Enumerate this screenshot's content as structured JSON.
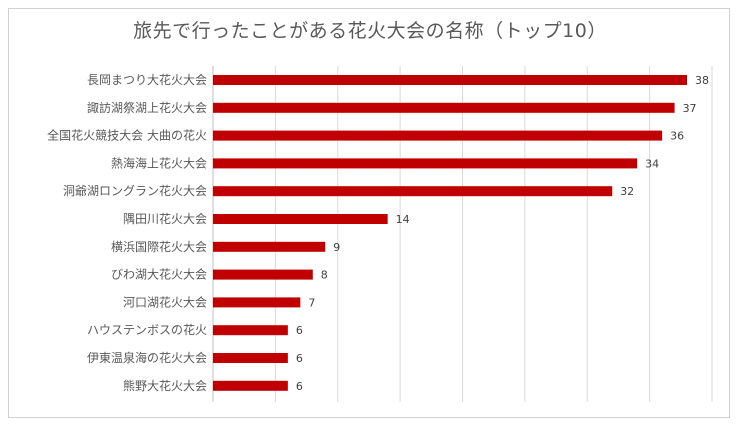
{
  "chart_data": {
    "type": "bar",
    "orientation": "horizontal",
    "title": "旅先で行ったことがある花火大会の名称（トップ10）",
    "categories": [
      "長岡まつり大花火大会",
      "諏訪湖祭湖上花火大会",
      "全国花火競技大会 大曲の花火",
      "熱海海上花火大会",
      "洞爺湖ロングラン花火大会",
      "隅田川花火大会",
      "横浜国際花火大会",
      "びわ湖大花火大会",
      "河口湖花火大会",
      "ハウステンボスの花火",
      "伊東温泉海の花火大会",
      "熊野大花火大会"
    ],
    "values": [
      38,
      37,
      36,
      34,
      32,
      14,
      9,
      8,
      7,
      6,
      6,
      6
    ],
    "xlim": [
      0,
      40
    ],
    "grid": true,
    "legend": "none",
    "bar_color": "#c00000"
  }
}
